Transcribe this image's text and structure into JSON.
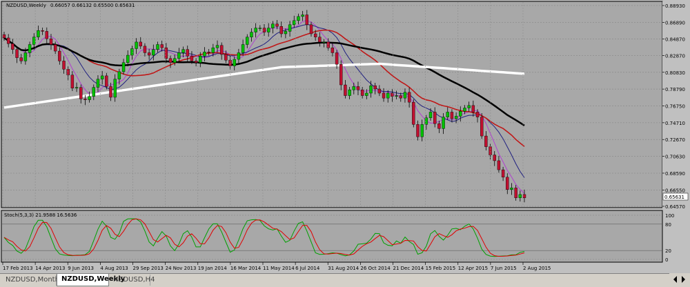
{
  "main_header": {
    "symbol": "NZDUSD,Weekly",
    "ohlc": "0.66057 0.66132 0.65500 0.65631"
  },
  "price_axis": [
    "0.88930",
    "0.86890",
    "0.84870",
    "0.82870",
    "0.80830",
    "0.78790",
    "0.76750",
    "0.74710",
    "0.72670",
    "0.70630",
    "0.68590",
    "0.66550",
    "0.64570"
  ],
  "current_price": "0.65631",
  "indicator": {
    "label": "Stoch(5,3,3) 21.9588 16.5636",
    "levels": [
      "100",
      "80",
      "20",
      "0"
    ]
  },
  "date_axis": [
    "17 Feb 2013",
    "14 Apr 2013",
    "9 Jun 2013",
    "4 Aug 2013",
    "29 Sep 2013",
    "24 Nov 2013",
    "19 Jan 2014",
    "16 Mar 2014",
    "11 May 2014",
    "6 Jul 2014",
    "31 Aug 2014",
    "26 Oct 2014",
    "21 Dec 2014",
    "15 Feb 2015",
    "12 Apr 2015",
    "7 Jun 2015",
    "2 Aug 2015"
  ],
  "tabs": [
    {
      "label": "NZDUSD,Monthly",
      "active": false
    },
    {
      "label": "NZDUSD,Weekly",
      "active": true
    },
    {
      "label": "NZDUSD,H4",
      "active": false
    }
  ],
  "colors": {
    "chart_bg": "#a8a8a8",
    "bull_candle": "#00c000",
    "bear_candle": "#c01030",
    "grid": "#8c8c8c",
    "ma_white": "#ffffff",
    "ma_black": "#000000",
    "ma_red": "#c01818",
    "ma_blue": "#202080",
    "ma_violet": "#b040d0",
    "stoch_main": "#00a000",
    "stoch_signal": "#e00000"
  },
  "chart_data": {
    "type": "candlestick",
    "symbol": "NZDUSD",
    "timeframe": "Weekly",
    "ylim": [
      0.6457,
      0.8893
    ],
    "candles_close": [
      0.85,
      0.843,
      0.836,
      0.826,
      0.822,
      0.832,
      0.842,
      0.851,
      0.859,
      0.858,
      0.849,
      0.842,
      0.834,
      0.822,
      0.812,
      0.805,
      0.789,
      0.79,
      0.776,
      0.775,
      0.779,
      0.79,
      0.8,
      0.804,
      0.791,
      0.778,
      0.8,
      0.809,
      0.82,
      0.829,
      0.837,
      0.845,
      0.84,
      0.832,
      0.829,
      0.836,
      0.842,
      0.838,
      0.825,
      0.82,
      0.825,
      0.832,
      0.836,
      0.828,
      0.822,
      0.82,
      0.828,
      0.833,
      0.832,
      0.838,
      0.841,
      0.83,
      0.823,
      0.816,
      0.824,
      0.832,
      0.842,
      0.851,
      0.857,
      0.862,
      0.862,
      0.857,
      0.862,
      0.867,
      0.864,
      0.855,
      0.858,
      0.866,
      0.871,
      0.876,
      0.878,
      0.866,
      0.855,
      0.851,
      0.845,
      0.845,
      0.838,
      0.832,
      0.818,
      0.793,
      0.78,
      0.787,
      0.791,
      0.787,
      0.78,
      0.783,
      0.792,
      0.788,
      0.783,
      0.777,
      0.783,
      0.779,
      0.78,
      0.777,
      0.784,
      0.772,
      0.745,
      0.73,
      0.745,
      0.753,
      0.76,
      0.746,
      0.74,
      0.754,
      0.76,
      0.752,
      0.755,
      0.761,
      0.765,
      0.768,
      0.76,
      0.754,
      0.731,
      0.718,
      0.708,
      0.701,
      0.69,
      0.681,
      0.666,
      0.668,
      0.656,
      0.66,
      0.656
    ],
    "stochastic": {
      "label": "Stoch(5,3,3)",
      "main": 21.9588,
      "signal": 16.5636,
      "levels": [
        100,
        80,
        20,
        0
      ]
    }
  }
}
